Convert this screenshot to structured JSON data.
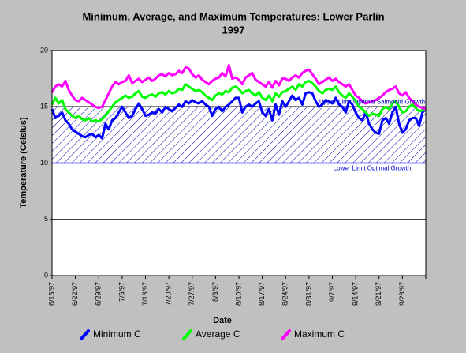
{
  "chart_data": {
    "type": "line",
    "title": "Minimum, Average, and Maximum Temperatures:  Lower Parlin",
    "subtitle": "1997",
    "x_label": "Date",
    "y_label": "Temperature (Celsius)",
    "categories": [
      "6/15/97",
      null,
      null,
      null,
      null,
      null,
      null,
      "6/22/97",
      null,
      null,
      null,
      null,
      null,
      null,
      "6/29/97",
      null,
      null,
      null,
      null,
      null,
      null,
      "7/6/97",
      null,
      null,
      null,
      null,
      null,
      null,
      "7/13/97",
      null,
      null,
      null,
      null,
      null,
      null,
      "7/20/97",
      null,
      null,
      null,
      null,
      null,
      null,
      "7/27/97",
      null,
      null,
      null,
      null,
      null,
      null,
      "8/3/97",
      null,
      null,
      null,
      null,
      null,
      null,
      "8/10/97",
      null,
      null,
      null,
      null,
      null,
      null,
      "8/17/97",
      null,
      null,
      null,
      null,
      null,
      null,
      "8/24/97",
      null,
      null,
      null,
      null,
      null,
      null,
      "8/31/97",
      null,
      null,
      null,
      null,
      null,
      null,
      "9/7/97",
      null,
      null,
      null,
      null,
      null,
      null,
      "9/14/97",
      null,
      null,
      null,
      null,
      null,
      null,
      "9/21/97",
      null,
      null,
      null,
      null,
      null,
      null,
      "9/28/97",
      null,
      null,
      null,
      null,
      null,
      null,
      null
    ],
    "series": [
      {
        "name": "Minimum C",
        "color": "#0000ff",
        "values": [
          14.8,
          14.0,
          14.2,
          14.5,
          13.8,
          13.5,
          13.0,
          12.8,
          12.6,
          12.4,
          12.3,
          12.5,
          12.6,
          12.3,
          12.5,
          12.2,
          13.5,
          13.0,
          13.8,
          14.0,
          14.5,
          15.0,
          14.5,
          14.0,
          14.2,
          14.8,
          15.3,
          14.8,
          14.2,
          14.3,
          14.5,
          14.4,
          14.8,
          14.5,
          15.0,
          14.8,
          14.6,
          14.9,
          15.2,
          15.0,
          15.5,
          15.3,
          15.6,
          15.4,
          15.3,
          15.5,
          15.2,
          15.0,
          14.2,
          14.8,
          15.0,
          14.6,
          15.0,
          15.2,
          15.5,
          15.8,
          15.8,
          14.5,
          15.0,
          15.2,
          15.0,
          15.3,
          15.5,
          14.5,
          14.2,
          14.8,
          13.8,
          15.2,
          14.3,
          15.5,
          15.0,
          15.5,
          16.0,
          15.6,
          15.8,
          15.2,
          16.2,
          16.3,
          16.2,
          15.5,
          15.0,
          15.2,
          15.6,
          15.5,
          15.3,
          15.8,
          15.2,
          15.0,
          14.5,
          15.5,
          15.2,
          14.5,
          14.0,
          13.8,
          14.5,
          13.5,
          13.0,
          12.7,
          12.6,
          13.8,
          14.0,
          13.5,
          14.5,
          15.0,
          13.5,
          12.7,
          13.0,
          13.8,
          14.0,
          14.0,
          13.3,
          14.5,
          14.8
        ]
      },
      {
        "name": "Average C",
        "color": "#00ff00",
        "values": [
          15.2,
          15.8,
          15.3,
          15.6,
          14.8,
          14.5,
          14.2,
          14.0,
          14.2,
          13.9,
          13.8,
          14.0,
          13.7,
          13.8,
          13.7,
          13.9,
          14.2,
          14.6,
          15.0,
          15.4,
          15.6,
          15.8,
          16.0,
          15.8,
          15.9,
          16.2,
          16.4,
          15.9,
          15.8,
          16.0,
          16.1,
          15.9,
          16.2,
          16.3,
          16.1,
          16.4,
          16.2,
          16.3,
          16.6,
          16.5,
          17.0,
          16.8,
          16.6,
          16.4,
          16.5,
          16.3,
          16.0,
          15.8,
          15.6,
          16.0,
          16.2,
          16.1,
          16.4,
          16.3,
          16.7,
          16.8,
          16.6,
          16.2,
          16.4,
          16.5,
          16.2,
          16.0,
          16.3,
          15.8,
          15.6,
          16.0,
          15.5,
          16.2,
          15.9,
          16.3,
          16.4,
          16.6,
          16.8,
          16.5,
          17.0,
          16.8,
          17.2,
          17.3,
          17.1,
          16.8,
          16.4,
          16.2,
          16.5,
          16.6,
          16.5,
          16.8,
          16.3,
          16.0,
          15.8,
          16.2,
          15.9,
          15.5,
          15.0,
          14.8,
          14.5,
          14.2,
          14.4,
          14.3,
          14.2,
          14.8,
          15.0,
          14.8,
          15.3,
          15.5,
          15.0,
          14.5,
          14.6,
          15.0,
          15.2,
          14.9,
          14.6,
          14.7,
          14.8
        ]
      },
      {
        "name": "Maximum C",
        "color": "#ff00ff",
        "values": [
          16.3,
          16.8,
          17.0,
          16.8,
          17.3,
          16.5,
          16.0,
          15.6,
          15.5,
          15.8,
          15.6,
          15.4,
          15.2,
          15.0,
          14.9,
          15.0,
          15.6,
          16.2,
          16.8,
          17.2,
          17.0,
          17.2,
          17.3,
          17.8,
          17.1,
          17.3,
          17.5,
          17.2,
          17.4,
          17.6,
          17.3,
          17.5,
          17.8,
          17.9,
          17.7,
          18.0,
          17.8,
          17.9,
          18.2,
          18.0,
          18.5,
          18.4,
          17.9,
          17.6,
          17.8,
          17.4,
          17.2,
          17.0,
          17.3,
          17.5,
          17.6,
          18.0,
          17.7,
          18.7,
          17.5,
          17.6,
          17.4,
          17.0,
          17.6,
          17.8,
          18.0,
          17.4,
          17.2,
          17.0,
          16.8,
          17.2,
          16.7,
          17.3,
          16.9,
          17.5,
          17.5,
          17.3,
          17.6,
          17.8,
          17.6,
          18.0,
          18.2,
          18.3,
          17.9,
          17.5,
          17.0,
          17.2,
          17.4,
          17.6,
          17.3,
          17.5,
          17.2,
          17.0,
          16.8,
          17.0,
          16.5,
          16.0,
          15.8,
          15.5,
          15.3,
          15.4,
          15.5,
          15.6,
          15.8,
          16.0,
          16.3,
          16.5,
          16.6,
          16.8,
          16.2,
          16.0,
          16.3,
          15.8,
          15.5,
          15.2,
          15.0,
          14.9,
          14.8
        ]
      }
    ],
    "reference_lines": [
      {
        "value": 15,
        "label": "Upper Limit Optimal Salmonid Growth",
        "color": "#000000"
      },
      {
        "value": 10,
        "label": "Lower Limit Optimal Growth",
        "color": "#0000ff"
      }
    ],
    "ylim": [
      0,
      20
    ],
    "yticks": [
      0,
      5,
      10,
      15,
      20
    ],
    "grid": true
  }
}
